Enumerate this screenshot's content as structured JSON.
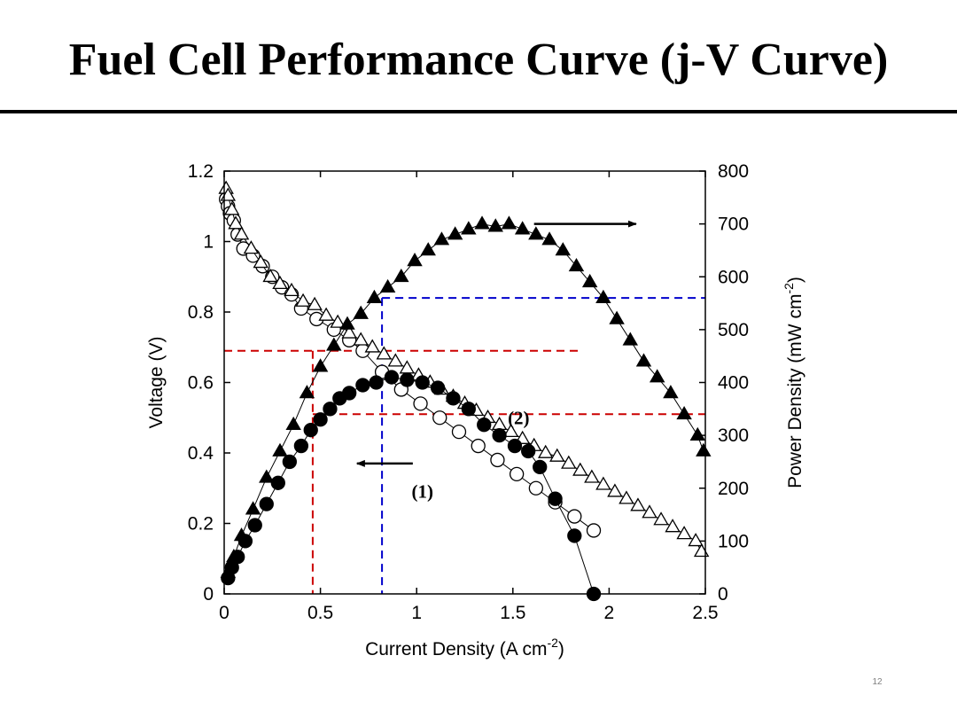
{
  "slide": {
    "title": "Fuel Cell Performance Curve (j-V Curve)",
    "page_number": "12"
  },
  "chart_data": {
    "type": "scatter",
    "xlabel": "Current Density (A cm-2)",
    "ylabel": "Voltage (V)",
    "y2label": "Power Density (mW cm-2)",
    "xlim": [
      0,
      2.5
    ],
    "ylim": [
      0,
      1.2
    ],
    "y2lim": [
      0,
      800
    ],
    "x_ticks": [
      "0",
      "0.5",
      "1",
      "1.5",
      "2",
      "2.5"
    ],
    "y_ticks": [
      "0",
      "0.2",
      "0.4",
      "0.6",
      "0.8",
      "1",
      "1.2"
    ],
    "y2_ticks": [
      "0",
      "100",
      "200",
      "300",
      "400",
      "500",
      "600",
      "700",
      "800"
    ],
    "grid": false,
    "series": [
      {
        "axis": "left",
        "marker": "open-circle",
        "x": [
          0.01,
          0.02,
          0.03,
          0.05,
          0.07,
          0.1,
          0.15,
          0.2,
          0.25,
          0.3,
          0.35,
          0.4,
          0.48,
          0.57,
          0.65,
          0.72,
          0.82,
          0.92,
          1.02,
          1.12,
          1.22,
          1.32,
          1.42,
          1.52,
          1.62,
          1.72,
          1.82,
          1.92
        ],
        "y": [
          1.12,
          1.1,
          1.08,
          1.06,
          1.02,
          0.98,
          0.96,
          0.93,
          0.9,
          0.87,
          0.85,
          0.81,
          0.78,
          0.75,
          0.72,
          0.69,
          0.63,
          0.58,
          0.54,
          0.5,
          0.46,
          0.42,
          0.38,
          0.34,
          0.3,
          0.26,
          0.22,
          0.18
        ]
      },
      {
        "axis": "left",
        "marker": "open-triangle",
        "x": [
          0.01,
          0.02,
          0.04,
          0.06,
          0.09,
          0.14,
          0.19,
          0.24,
          0.29,
          0.35,
          0.41,
          0.47,
          0.53,
          0.59,
          0.65,
          0.71,
          0.77,
          0.83,
          0.89,
          0.95,
          1.01,
          1.07,
          1.13,
          1.19,
          1.25,
          1.31,
          1.37,
          1.43,
          1.49,
          1.55,
          1.61,
          1.67,
          1.73,
          1.79,
          1.85,
          1.91,
          1.97,
          2.03,
          2.09,
          2.15,
          2.21,
          2.27,
          2.33,
          2.39,
          2.45,
          2.48
        ],
        "y": [
          1.15,
          1.13,
          1.09,
          1.05,
          1.02,
          0.98,
          0.94,
          0.9,
          0.88,
          0.86,
          0.83,
          0.82,
          0.79,
          0.77,
          0.74,
          0.72,
          0.7,
          0.68,
          0.66,
          0.64,
          0.62,
          0.6,
          0.58,
          0.56,
          0.54,
          0.52,
          0.5,
          0.48,
          0.46,
          0.44,
          0.42,
          0.4,
          0.39,
          0.37,
          0.35,
          0.33,
          0.31,
          0.29,
          0.27,
          0.25,
          0.23,
          0.21,
          0.19,
          0.17,
          0.15,
          0.12
        ]
      },
      {
        "axis": "right",
        "marker": "filled-circle",
        "x": [
          0.02,
          0.04,
          0.07,
          0.11,
          0.16,
          0.22,
          0.28,
          0.34,
          0.4,
          0.45,
          0.5,
          0.55,
          0.6,
          0.65,
          0.72,
          0.79,
          0.87,
          0.95,
          1.03,
          1.11,
          1.19,
          1.27,
          1.35,
          1.43,
          1.51,
          1.58,
          1.64,
          1.72,
          1.82,
          1.92
        ],
        "y": [
          30,
          50,
          70,
          100,
          130,
          170,
          210,
          250,
          280,
          310,
          330,
          350,
          370,
          380,
          395,
          400,
          410,
          405,
          400,
          390,
          370,
          350,
          320,
          300,
          280,
          270,
          240,
          180,
          110,
          0
        ]
      },
      {
        "axis": "right",
        "marker": "filled-triangle",
        "x": [
          0.02,
          0.05,
          0.09,
          0.15,
          0.22,
          0.29,
          0.36,
          0.43,
          0.5,
          0.57,
          0.64,
          0.71,
          0.78,
          0.85,
          0.92,
          0.99,
          1.06,
          1.13,
          1.2,
          1.27,
          1.34,
          1.41,
          1.48,
          1.55,
          1.62,
          1.69,
          1.76,
          1.83,
          1.9,
          1.97,
          2.04,
          2.11,
          2.18,
          2.25,
          2.32,
          2.39,
          2.46,
          2.49
        ],
        "y": [
          40,
          70,
          110,
          160,
          220,
          270,
          320,
          380,
          430,
          470,
          510,
          530,
          560,
          580,
          600,
          630,
          650,
          670,
          680,
          690,
          700,
          695,
          700,
          690,
          680,
          670,
          650,
          620,
          590,
          560,
          520,
          480,
          440,
          410,
          380,
          340,
          300,
          270
        ]
      }
    ],
    "annotations": [
      {
        "text": "(1)",
        "x": 1.03,
        "y": 0.29,
        "arrow_direction": "left"
      },
      {
        "text": "(2)",
        "x": 1.53,
        "y": 0.5,
        "arrow_direction": "right"
      }
    ],
    "arrows": [
      {
        "from": [
          0.98,
          0.37
        ],
        "to": [
          0.69,
          0.37
        ],
        "direction": "left"
      },
      {
        "from": [
          1.61,
          1.05
        ],
        "to": [
          2.14,
          1.05
        ],
        "direction": "right"
      }
    ],
    "reference_lines": [
      {
        "color": "#cc0000",
        "points": [
          [
            0,
            0.69
          ],
          [
            1.85,
            0.69
          ]
        ]
      },
      {
        "color": "#cc0000",
        "points": [
          [
            0.46,
            0.69
          ],
          [
            0.46,
            0
          ]
        ]
      },
      {
        "color": "#cc0000",
        "points": [
          [
            0.46,
            0.51
          ],
          [
            2.5,
            0.51
          ]
        ]
      },
      {
        "color": "#0000cc",
        "points": [
          [
            0.82,
            0.84
          ],
          [
            2.5,
            0.84
          ]
        ]
      },
      {
        "color": "#0000cc",
        "points": [
          [
            0.82,
            0.84
          ],
          [
            0.82,
            0
          ]
        ]
      }
    ]
  }
}
